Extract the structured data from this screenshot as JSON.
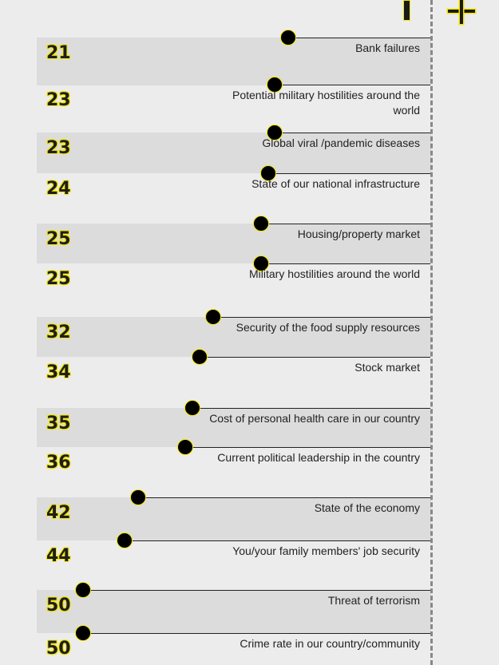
{
  "chart_data": {
    "type": "dot",
    "title": "",
    "xlabel": "",
    "ylabel": "",
    "items": [
      {
        "value": 21,
        "label": "Bank failures"
      },
      {
        "value": 23,
        "label": "Potential military hostilities around the world"
      },
      {
        "value": 23,
        "label": "Global viral /pandemic diseases"
      },
      {
        "value": 24,
        "label": "State of our national infrastructure"
      },
      {
        "value": 25,
        "label": "Housing/property market"
      },
      {
        "value": 25,
        "label": "Military hostilities around the world"
      },
      {
        "value": 32,
        "label": "Security of the food supply resources"
      },
      {
        "value": 34,
        "label": "Stock market"
      },
      {
        "value": 35,
        "label": "Cost of personal health care in our country"
      },
      {
        "value": 36,
        "label": "Current political leadership in the country"
      },
      {
        "value": 42,
        "label": "State of the economy"
      },
      {
        "value": 44,
        "label": "You/your family members' job security"
      },
      {
        "value": 50,
        "label": "Threat of terrorism"
      },
      {
        "value": 50,
        "label": "Crime rate in our country/community"
      }
    ],
    "colors": {
      "dot": "#000000",
      "outline": "#f2e600",
      "band": "#dcdcdc",
      "background": "#ececec"
    }
  },
  "legend": {
    "minus_icon": "minus-icon",
    "plus_icon": "plus-icon"
  }
}
